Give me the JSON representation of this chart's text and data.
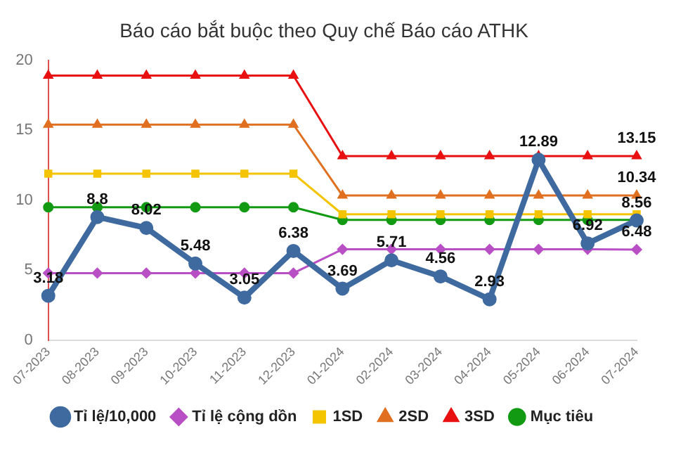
{
  "chart_data": {
    "type": "line",
    "title": "Báo cáo bắt buộc theo Quy chế Báo cáo ATHK",
    "categories": [
      "07-2023",
      "08-2023",
      "09-2023",
      "10-2023",
      "11-2023",
      "12-2023",
      "01-2024",
      "02-2024",
      "03-2024",
      "04-2024",
      "05-2024",
      "06-2024",
      "07-2024"
    ],
    "series": [
      {
        "name": "Tỉ lệ/10,000",
        "color": "#3f6aa0",
        "marker": "circle",
        "values": [
          3.18,
          8.8,
          8.02,
          5.48,
          3.05,
          6.38,
          3.69,
          5.71,
          4.56,
          2.93,
          12.89,
          6.92,
          8.56
        ],
        "value_labels": [
          "3.18",
          "8.8",
          "8.02",
          "5.48",
          "3.05",
          "6.38",
          "3.69",
          "5.71",
          "4.56",
          "2.93",
          "12.89",
          "6.92",
          "8.56"
        ]
      },
      {
        "name": "Tỉ lệ cộng dồn",
        "color": "#b84fc4",
        "marker": "diamond",
        "values": [
          4.8,
          4.8,
          4.8,
          4.8,
          4.8,
          4.8,
          6.5,
          6.5,
          6.5,
          6.5,
          6.5,
          6.5,
          6.48
        ],
        "value_labels": [
          null,
          null,
          null,
          null,
          null,
          null,
          null,
          null,
          null,
          null,
          null,
          null,
          "6.48"
        ]
      },
      {
        "name": "1SD",
        "color": "#f5c400",
        "marker": "square",
        "values": [
          11.9,
          11.9,
          11.9,
          11.9,
          11.9,
          11.9,
          9.0,
          9.0,
          9.0,
          9.0,
          9.0,
          9.0,
          9.0
        ]
      },
      {
        "name": "2SD",
        "color": "#e07020",
        "marker": "triangle",
        "values": [
          15.4,
          15.4,
          15.4,
          15.4,
          15.4,
          15.4,
          10.34,
          10.34,
          10.34,
          10.34,
          10.34,
          10.34,
          10.34
        ],
        "value_labels": [
          null,
          null,
          null,
          null,
          null,
          null,
          null,
          null,
          null,
          null,
          null,
          null,
          "10.34"
        ]
      },
      {
        "name": "3SD",
        "color": "#e81010",
        "marker": "triangle",
        "values": [
          18.9,
          18.9,
          18.9,
          18.9,
          18.9,
          18.9,
          13.15,
          13.15,
          13.15,
          13.15,
          13.15,
          13.15,
          13.15
        ],
        "value_labels": [
          null,
          null,
          null,
          null,
          null,
          null,
          null,
          null,
          null,
          null,
          null,
          null,
          "13.15"
        ]
      },
      {
        "name": "Mục tiêu",
        "color": "#139a13",
        "marker": "circle",
        "values": [
          9.5,
          9.5,
          9.5,
          9.5,
          9.5,
          9.5,
          8.6,
          8.6,
          8.6,
          8.6,
          8.6,
          8.6,
          8.6
        ]
      }
    ],
    "ylim": [
      0,
      20
    ],
    "yticks": [
      0,
      5,
      10,
      15,
      20
    ],
    "grid": false,
    "legend": "bottom"
  }
}
